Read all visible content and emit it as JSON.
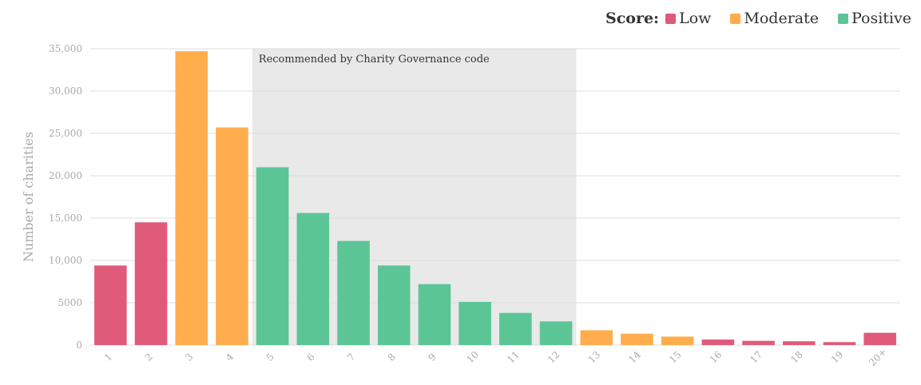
{
  "legend": {
    "title": "Score:",
    "items": [
      {
        "key": "low",
        "label": "Low",
        "color": "#E05A7A"
      },
      {
        "key": "moderate",
        "label": "Moderate",
        "color": "#FFAD4D"
      },
      {
        "key": "positive",
        "label": "Positive",
        "color": "#5CC596"
      }
    ]
  },
  "chart_data": {
    "type": "bar",
    "title": "",
    "xlabel": "",
    "ylabel": "Number of charities",
    "ylim": [
      0,
      35000
    ],
    "yticks": [
      0,
      5000,
      10000,
      15000,
      20000,
      25000,
      30000,
      35000
    ],
    "ytick_labels": [
      "0",
      "5000",
      "10,000",
      "15,000",
      "20,000",
      "25,000",
      "30,000",
      "35,000"
    ],
    "grid": true,
    "legend_position": "top-right",
    "categories": [
      "1",
      "2",
      "3",
      "4",
      "5",
      "6",
      "7",
      "8",
      "9",
      "10",
      "11",
      "12",
      "13",
      "14",
      "15",
      "16",
      "17",
      "18",
      "19",
      "20+"
    ],
    "values": [
      9400,
      14500,
      34700,
      25700,
      21000,
      15600,
      12300,
      9400,
      7200,
      5100,
      3800,
      2800,
      1750,
      1350,
      1000,
      650,
      500,
      450,
      350,
      1450
    ],
    "score": [
      "low",
      "low",
      "moderate",
      "moderate",
      "positive",
      "positive",
      "positive",
      "positive",
      "positive",
      "positive",
      "positive",
      "positive",
      "moderate",
      "moderate",
      "moderate",
      "low",
      "low",
      "low",
      "low",
      "low"
    ],
    "annotation": {
      "text": "Recommended by Charity Governance code",
      "from_category": "5",
      "to_category": "12",
      "color": "#E9E9E9"
    }
  }
}
